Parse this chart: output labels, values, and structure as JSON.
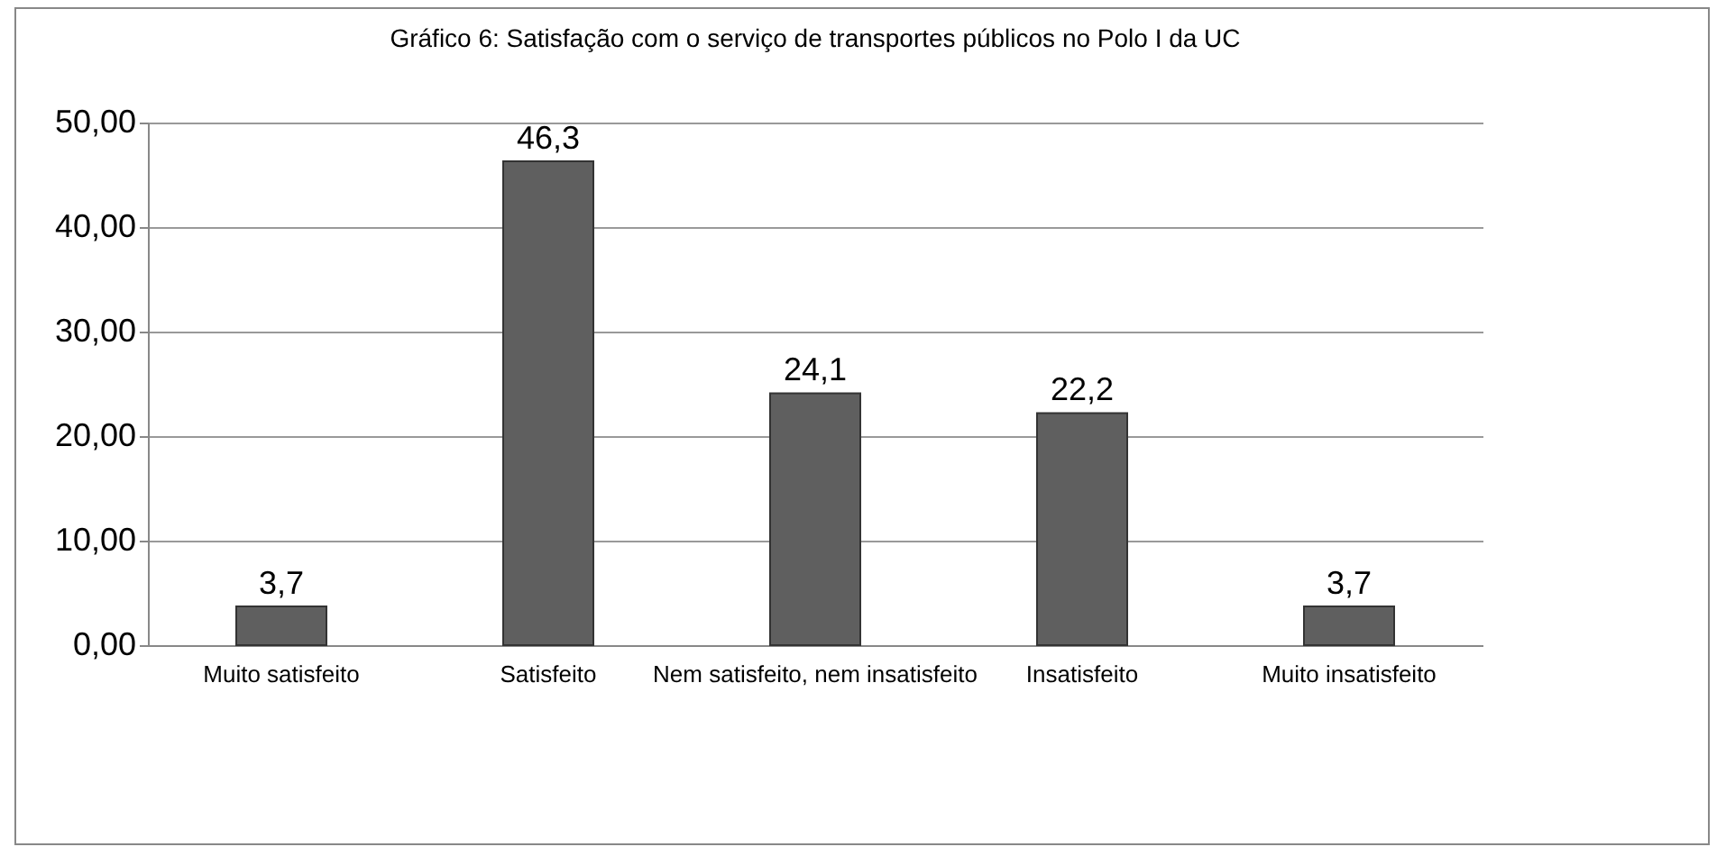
{
  "chart_data": {
    "type": "bar",
    "title": "Gráfico 6: Satisfação com o serviço de transportes públicos no Polo I da UC",
    "categories": [
      "Muito satisfeito",
      "Satisfeito",
      "Nem satisfeito, nem insatisfeito",
      "Insatisfeito",
      "Muito insatisfeito"
    ],
    "values": [
      3.7,
      46.3,
      24.1,
      22.2,
      3.7
    ],
    "value_labels": [
      "3,7",
      "46,3",
      "24,1",
      "22,2",
      "3,7"
    ],
    "color": "#5f5f5f",
    "ylim": [
      0,
      50
    ],
    "yticks": [
      {
        "value": 0,
        "label": "0,00"
      },
      {
        "value": 10,
        "label": "10,00"
      },
      {
        "value": 20,
        "label": "20,00"
      },
      {
        "value": 30,
        "label": "30,00"
      },
      {
        "value": 40,
        "label": "40,00"
      },
      {
        "value": 50,
        "label": "50,00"
      }
    ],
    "grid": "y"
  }
}
